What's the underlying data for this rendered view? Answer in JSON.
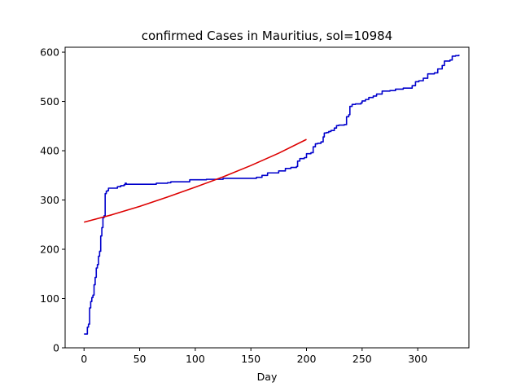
{
  "chart_data": {
    "type": "line",
    "title": "confirmed Cases in Mauritius, sol=10984",
    "xlabel": "Day",
    "ylabel": "",
    "xlim": [
      -17,
      346
    ],
    "ylim": [
      0,
      610
    ],
    "xticks": [
      0,
      50,
      100,
      150,
      200,
      250,
      300
    ],
    "yticks": [
      0,
      100,
      200,
      300,
      400,
      500,
      600
    ],
    "grid": false,
    "legend": "none",
    "series": [
      {
        "color": "#0000cc",
        "step": true,
        "points": [
          [
            0,
            28
          ],
          [
            3,
            42
          ],
          [
            4,
            48
          ],
          [
            5,
            81
          ],
          [
            6,
            94
          ],
          [
            7,
            102
          ],
          [
            8,
            107
          ],
          [
            9,
            128
          ],
          [
            10,
            143
          ],
          [
            11,
            162
          ],
          [
            12,
            169
          ],
          [
            13,
            186
          ],
          [
            14,
            196
          ],
          [
            15,
            227
          ],
          [
            16,
            244
          ],
          [
            17,
            264
          ],
          [
            18,
            268
          ],
          [
            19,
            313
          ],
          [
            20,
            318
          ],
          [
            21,
            319
          ],
          [
            22,
            324
          ],
          [
            30,
            327
          ],
          [
            33,
            329
          ],
          [
            36,
            331
          ],
          [
            37,
            334
          ],
          [
            38,
            332
          ],
          [
            65,
            334
          ],
          [
            75,
            335
          ],
          [
            78,
            337
          ],
          [
            95,
            341
          ],
          [
            110,
            342
          ],
          [
            125,
            344
          ],
          [
            155,
            346
          ],
          [
            160,
            350
          ],
          [
            165,
            355
          ],
          [
            175,
            359
          ],
          [
            181,
            364
          ],
          [
            186,
            366
          ],
          [
            191,
            368
          ],
          [
            192,
            379
          ],
          [
            194,
            384
          ],
          [
            198,
            386
          ],
          [
            200,
            394
          ],
          [
            204,
            396
          ],
          [
            206,
            408
          ],
          [
            208,
            414
          ],
          [
            210,
            415
          ],
          [
            213,
            418
          ],
          [
            215,
            428
          ],
          [
            216,
            436
          ],
          [
            218,
            437
          ],
          [
            220,
            439
          ],
          [
            222,
            441
          ],
          [
            225,
            446
          ],
          [
            227,
            451
          ],
          [
            229,
            452
          ],
          [
            234,
            453
          ],
          [
            236,
            469
          ],
          [
            238,
            473
          ],
          [
            239,
            490
          ],
          [
            241,
            494
          ],
          [
            244,
            495
          ],
          [
            249,
            497
          ],
          [
            250,
            501
          ],
          [
            253,
            504
          ],
          [
            256,
            508
          ],
          [
            260,
            511
          ],
          [
            263,
            515
          ],
          [
            268,
            521
          ],
          [
            275,
            522
          ],
          [
            280,
            525
          ],
          [
            287,
            527
          ],
          [
            295,
            532
          ],
          [
            298,
            540
          ],
          [
            301,
            542
          ],
          [
            305,
            547
          ],
          [
            309,
            556
          ],
          [
            315,
            558
          ],
          [
            318,
            566
          ],
          [
            322,
            573
          ],
          [
            324,
            582
          ],
          [
            329,
            584
          ],
          [
            331,
            592
          ],
          [
            334,
            593
          ],
          [
            337,
            595
          ]
        ]
      },
      {
        "color": "#dd0000",
        "step": false,
        "points": [
          [
            0,
            255
          ],
          [
            25,
            270
          ],
          [
            50,
            287
          ],
          [
            75,
            306
          ],
          [
            100,
            326
          ],
          [
            125,
            347
          ],
          [
            150,
            370
          ],
          [
            175,
            395
          ],
          [
            200,
            423
          ]
        ]
      }
    ]
  }
}
